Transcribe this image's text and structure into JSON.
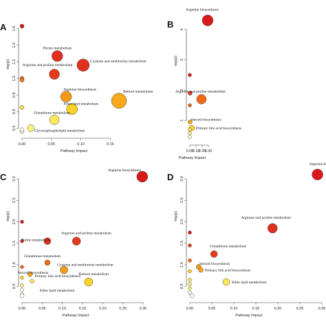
{
  "chart_data": [
    {
      "panel": "A",
      "type": "scatter",
      "xlabel": "Pathway Impact",
      "ylabel": "-log(p)",
      "xlim": [
        0,
        0.2
      ],
      "ylim": [
        0.32,
        1.68
      ],
      "xticks": [
        "0.00",
        "0.05",
        "0.10",
        "0.15"
      ],
      "xtick_values": [
        0,
        0.05,
        0.1,
        0.15
      ],
      "yticks": [
        "0.4",
        "0.6",
        "0.8",
        "1.0",
        "1.2",
        "1.4",
        "1.6"
      ],
      "ytick_values": [
        0.4,
        0.6,
        0.8,
        1.0,
        1.2,
        1.4,
        1.6
      ],
      "points": [
        {
          "x": 0.0,
          "y": 1.63,
          "size": 3,
          "color": "#d7191c",
          "label": ""
        },
        {
          "x": 0.06,
          "y": 1.27,
          "size": 8,
          "color": "#e0301e",
          "label": "Purine metabolism"
        },
        {
          "x": 0.104,
          "y": 1.16,
          "size": 9,
          "color": "#e0301e",
          "label": "Cysteine and methionine metabolism"
        },
        {
          "x": 0.055,
          "y": 1.05,
          "size": 7.5,
          "color": "#e43a1c",
          "label": "Arginine and proline metabolism"
        },
        {
          "x": 0.0,
          "y": 1.0,
          "size": 3,
          "color": "#ef6a16",
          "label": ""
        },
        {
          "x": 0.0,
          "y": 0.98,
          "size": 3,
          "color": "#f07a12",
          "label": ""
        },
        {
          "x": 0.075,
          "y": 0.78,
          "size": 8,
          "color": "#f49a18",
          "label": "Arginine biosynthesis"
        },
        {
          "x": 0.165,
          "y": 0.73,
          "size": 11,
          "color": "#f8a81d",
          "label": "Retinol metabolism"
        },
        {
          "x": 0.085,
          "y": 0.63,
          "size": 8,
          "color": "#fbd328",
          "label": "Ether lipid metabolism"
        },
        {
          "x": 0.0,
          "y": 0.65,
          "size": 3,
          "color": "#fbe54a",
          "label": ""
        },
        {
          "x": 0.055,
          "y": 0.5,
          "size": 7,
          "color": "#fde85c",
          "label": "Glutathione metabolism"
        },
        {
          "x": 0.015,
          "y": 0.4,
          "size": 5,
          "color": "#fef17a",
          "label": "Glycerophospholipid metabolism"
        },
        {
          "x": 0.0,
          "y": 0.36,
          "size": 3,
          "color": "#fffbe0",
          "label": ""
        },
        {
          "x": 0.0,
          "y": 0.38,
          "size": 3,
          "color": "#fffbe0",
          "label": ""
        }
      ]
    },
    {
      "panel": "B",
      "type": "scatter",
      "xlabel": "Pathway Impact",
      "ylabel": "-log(p)",
      "xlim": [
        0,
        0.3
      ],
      "ylim": [
        0.3,
        4.7
      ],
      "xticks": [
        "0.00",
        "0.10",
        "0.20",
        "0.30"
      ],
      "xtick_values": [
        0,
        0.1,
        0.2,
        0.3
      ],
      "yticks": [
        "1",
        "2",
        "3",
        "4"
      ],
      "ytick_values": [
        1,
        2,
        3,
        4
      ],
      "points": [
        {
          "x": 0.288,
          "y": 4.3,
          "size": 8,
          "color": "#d7191c",
          "label": "Arginine biosynthesis"
        },
        {
          "x": 0.0,
          "y": 2.5,
          "size": 2.5,
          "color": "#d7191c",
          "label": ""
        },
        {
          "x": 0.005,
          "y": 1.9,
          "size": 3,
          "color": "#e43a1c",
          "label": ""
        },
        {
          "x": 0.188,
          "y": 1.7,
          "size": 7,
          "color": "#ef6a16",
          "label": "Arginine and proline metabolism"
        },
        {
          "x": 0.0,
          "y": 1.5,
          "size": 2.5,
          "color": "#ef6a16",
          "label": ""
        },
        {
          "x": 0.003,
          "y": 0.95,
          "size": 3,
          "color": "#f8a81d",
          "label": "Steroid biosynthesis"
        },
        {
          "x": 0.03,
          "y": 0.75,
          "size": 4,
          "color": "#fbd328",
          "label": "Primary bile acid biosynthesis"
        },
        {
          "x": 0.0,
          "y": 0.7,
          "size": 2.5,
          "color": "#fde85c",
          "label": ""
        },
        {
          "x": 0.0,
          "y": 0.58,
          "size": 2.5,
          "color": "#fef17a",
          "label": ""
        },
        {
          "x": 0.0,
          "y": 0.45,
          "size": 2.5,
          "color": "#fffbe0",
          "label": ""
        }
      ]
    },
    {
      "panel": "C",
      "type": "scatter",
      "xlabel": "Pathway Impact",
      "ylabel": "-log(p)",
      "xlim": [
        0,
        0.3
      ],
      "ylim": [
        0.2,
        3.4
      ],
      "xticks": [
        "0.00",
        "0.05",
        "0.10",
        "0.15",
        "0.20",
        "0.25",
        "0.30"
      ],
      "xtick_values": [
        0,
        0.05,
        0.1,
        0.15,
        0.2,
        0.25,
        0.3
      ],
      "yticks": [
        "0.5",
        "1.0",
        "1.5",
        "2.0",
        "2.5",
        "3.0"
      ],
      "ytick_values": [
        0.5,
        1.0,
        1.5,
        2.0,
        2.5,
        3.0
      ],
      "points": [
        {
          "x": 0.298,
          "y": 3.05,
          "size": 8,
          "color": "#d7191c",
          "label": "Arginine biosynthesis"
        },
        {
          "x": 0.0,
          "y": 2.0,
          "size": 2.5,
          "color": "#d7191c",
          "label": ""
        },
        {
          "x": 0.0,
          "y": 1.55,
          "size": 2.5,
          "color": "#e0301e",
          "label": ""
        },
        {
          "x": 0.063,
          "y": 1.55,
          "size": 5,
          "color": "#e0301e",
          "label": "Purine metabolism"
        },
        {
          "x": 0.135,
          "y": 1.55,
          "size": 6,
          "color": "#e43a1c",
          "label": "Arginine and proline metabolism"
        },
        {
          "x": 0.063,
          "y": 1.05,
          "size": 4,
          "color": "#ef6a16",
          "label": "Glutathione metabolism"
        },
        {
          "x": 0.104,
          "y": 0.88,
          "size": 5.5,
          "color": "#f49a18",
          "label": "Cysteine and methionine metabolism"
        },
        {
          "x": 0.0,
          "y": 0.95,
          "size": 2.5,
          "color": "#ef6a16",
          "label": ""
        },
        {
          "x": 0.02,
          "y": 0.78,
          "size": 3.5,
          "color": "#f8a81d",
          "label": "Steroid biosynthesis"
        },
        {
          "x": 0.165,
          "y": 0.6,
          "size": 6,
          "color": "#fbd328",
          "label": "Retinol metabolism"
        },
        {
          "x": 0.0,
          "y": 0.7,
          "size": 2.5,
          "color": "#fbd328",
          "label": ""
        },
        {
          "x": 0.025,
          "y": 0.62,
          "size": 3,
          "color": "#fde85c",
          "label": "Primary bile acid biosynthesis"
        },
        {
          "x": 0.0,
          "y": 0.52,
          "size": 2.5,
          "color": "#fef17a",
          "label": ""
        },
        {
          "x": 0.0,
          "y": 0.42,
          "size": 2.5,
          "color": "#fffbe0",
          "label": ""
        },
        {
          "x": 0.0,
          "y": 0.32,
          "size": 2.5,
          "color": "#fffbe0",
          "label": ""
        },
        {
          "x": 0.0,
          "y": 0.28,
          "size": 3,
          "color": "#ffffff",
          "label": "Ether lipid metabolism"
        }
      ]
    },
    {
      "panel": "D",
      "type": "scatter",
      "xlabel": "Pathway Impact",
      "ylabel": "-log(p)",
      "xlim": [
        0,
        0.3
      ],
      "ylim": [
        0.2,
        3.4
      ],
      "xticks": [
        "0.00",
        "0.05",
        "0.10",
        "0.15",
        "0.20",
        "0.25",
        "0.30"
      ],
      "xtick_values": [
        0,
        0.05,
        0.1,
        0.15,
        0.2,
        0.25,
        0.3
      ],
      "yticks": [
        "0.5",
        "1.0",
        "1.5",
        "2.0",
        "2.5",
        "3.0"
      ],
      "ytick_values": [
        0.5,
        1.0,
        1.5,
        2.0,
        2.5,
        3.0
      ],
      "points": [
        {
          "x": 0.29,
          "y": 3.1,
          "size": 8,
          "color": "#d7191c",
          "label": "Arginine biosynth"
        },
        {
          "x": 0.188,
          "y": 1.85,
          "size": 7,
          "color": "#e0301e",
          "label": "Arginine and proline metabolism"
        },
        {
          "x": 0.0,
          "y": 1.75,
          "size": 2.5,
          "color": "#d7191c",
          "label": ""
        },
        {
          "x": 0.0,
          "y": 1.45,
          "size": 2.5,
          "color": "#e43a1c",
          "label": ""
        },
        {
          "x": 0.055,
          "y": 1.25,
          "size": 5,
          "color": "#e43a1c",
          "label": "Glutathione metabolism"
        },
        {
          "x": 0.0,
          "y": 1.1,
          "size": 2.5,
          "color": "#ef6a16",
          "label": ""
        },
        {
          "x": 0.02,
          "y": 0.95,
          "size": 3.5,
          "color": "#f49a18",
          "label": "Steroid biosynthesis"
        },
        {
          "x": 0.025,
          "y": 0.88,
          "size": 3.5,
          "color": "#f8a81d",
          "label": "Primary bile acid biosynthesis"
        },
        {
          "x": 0.0,
          "y": 0.85,
          "size": 2.5,
          "color": "#fbd328",
          "label": ""
        },
        {
          "x": 0.083,
          "y": 0.6,
          "size": 5,
          "color": "#fde85c",
          "label": "Ether lipid metabolism"
        },
        {
          "x": 0.0,
          "y": 0.65,
          "size": 2.5,
          "color": "#fde85c",
          "label": ""
        },
        {
          "x": 0.0,
          "y": 0.55,
          "size": 2.5,
          "color": "#fef17a",
          "label": ""
        },
        {
          "x": 0.0,
          "y": 0.45,
          "size": 2.5,
          "color": "#fef17a",
          "label": ""
        },
        {
          "x": 0.0,
          "y": 0.35,
          "size": 2.5,
          "color": "#fffbe0",
          "label": ""
        },
        {
          "x": 0.005,
          "y": 0.28,
          "size": 3,
          "color": "#ffffff",
          "label": ""
        }
      ]
    }
  ]
}
